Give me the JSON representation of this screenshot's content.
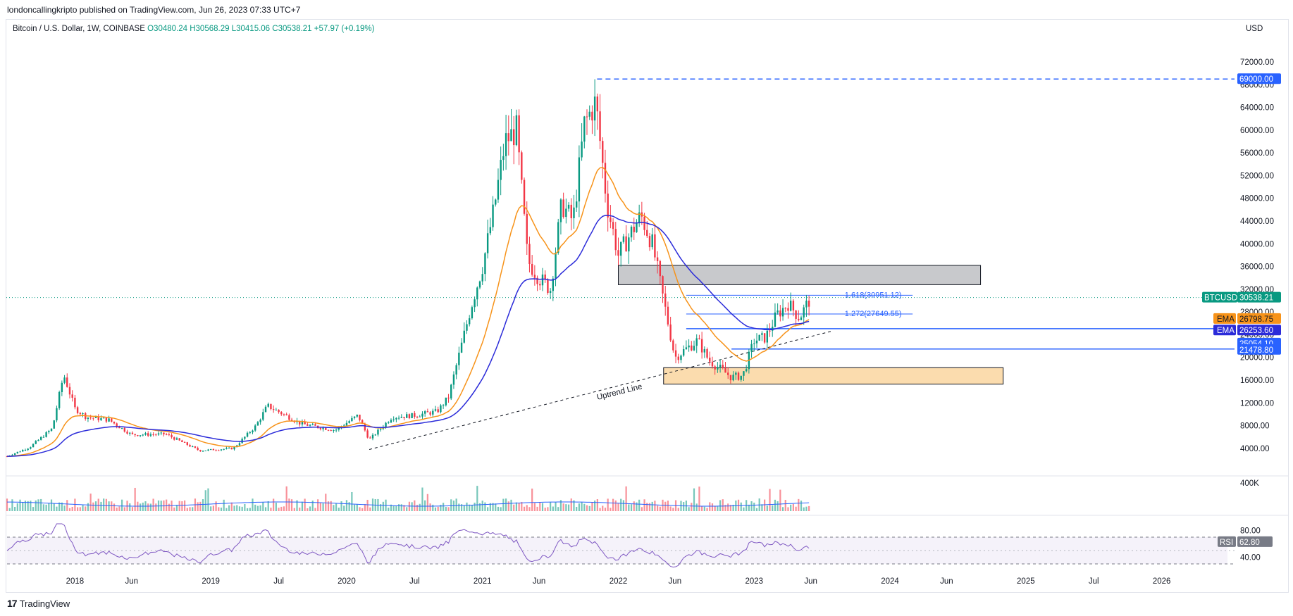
{
  "publisher_line": "londoncallingkripto published on TradingView.com, Jun 26, 2023 07:33 UTC+7",
  "symbol": {
    "name": "Bitcoin / U.S. Dollar, 1W, COINBASE",
    "open": "O30480.24",
    "high": "H30568.29",
    "low": "L30415.06",
    "close": "C30538.21",
    "change": "+57.97 (+0.19%)"
  },
  "currency": "USD",
  "footer": {
    "brand": "TradingView",
    "logo": "17"
  },
  "colors": {
    "up": "#089981",
    "down": "#f23645",
    "ema_fast": "#f7931a",
    "ema_slow": "#2b2bd9",
    "blue": "#2962ff",
    "rsi": "#7e57c2",
    "zone_gray": "#c8c9cc",
    "zone_orange": "#fbdcae"
  },
  "chart_data": {
    "type": "candlestick",
    "timeframe": "1W",
    "price_axis": {
      "ticks": [
        "72000.00",
        "68000.00",
        "64000.00",
        "60000.00",
        "56000.00",
        "52000.00",
        "48000.00",
        "44000.00",
        "40000.00",
        "36000.00",
        "32000.00",
        "28000.00",
        "24000.00",
        "20000.00",
        "16000.00",
        "12000.00",
        "8000.00",
        "4000.00"
      ],
      "ylim": [
        2000,
        72000
      ]
    },
    "time_axis": {
      "labels": [
        "2018",
        "Jun",
        "2019",
        "Jul",
        "2020",
        "Jul",
        "2021",
        "Jun",
        "2022",
        "Jun",
        "2023",
        "Jun",
        "2024",
        "Jun",
        "2025",
        "Jul",
        "2026"
      ],
      "range": [
        "2017-07",
        "2026-06"
      ]
    },
    "price_series_knots": [
      {
        "t": "2017-07",
        "p": 2600
      },
      {
        "t": "2017-09",
        "p": 4200
      },
      {
        "t": "2017-11",
        "p": 7500
      },
      {
        "t": "2017-12",
        "p": 17000
      },
      {
        "t": "2018-01",
        "p": 11000
      },
      {
        "t": "2018-02",
        "p": 9500
      },
      {
        "t": "2018-04",
        "p": 9000
      },
      {
        "t": "2018-06",
        "p": 6400
      },
      {
        "t": "2018-09",
        "p": 6500
      },
      {
        "t": "2018-12",
        "p": 3600
      },
      {
        "t": "2019-03",
        "p": 4000
      },
      {
        "t": "2019-05",
        "p": 8000
      },
      {
        "t": "2019-06",
        "p": 11500
      },
      {
        "t": "2019-09",
        "p": 8300
      },
      {
        "t": "2019-12",
        "p": 7200
      },
      {
        "t": "2020-02",
        "p": 9800
      },
      {
        "t": "2020-03",
        "p": 5500
      },
      {
        "t": "2020-05",
        "p": 9500
      },
      {
        "t": "2020-07",
        "p": 9800
      },
      {
        "t": "2020-09",
        "p": 10500
      },
      {
        "t": "2020-10",
        "p": 13000
      },
      {
        "t": "2020-12",
        "p": 29000
      },
      {
        "t": "2021-01",
        "p": 36000
      },
      {
        "t": "2021-02",
        "p": 46000
      },
      {
        "t": "2021-03",
        "p": 58000
      },
      {
        "t": "2021-04",
        "p": 60000
      },
      {
        "t": "2021-05",
        "p": 37000
      },
      {
        "t": "2021-06",
        "p": 34000
      },
      {
        "t": "2021-07",
        "p": 32000
      },
      {
        "t": "2021-08",
        "p": 47000
      },
      {
        "t": "2021-09",
        "p": 44000
      },
      {
        "t": "2021-10",
        "p": 61000
      },
      {
        "t": "2021-11",
        "p": 65000
      },
      {
        "t": "2021-12",
        "p": 47000
      },
      {
        "t": "2022-01",
        "p": 38000
      },
      {
        "t": "2022-03",
        "p": 45000
      },
      {
        "t": "2022-04",
        "p": 40000
      },
      {
        "t": "2022-05",
        "p": 30000
      },
      {
        "t": "2022-06",
        "p": 20000
      },
      {
        "t": "2022-08",
        "p": 23000
      },
      {
        "t": "2022-09",
        "p": 19500
      },
      {
        "t": "2022-11",
        "p": 16500
      },
      {
        "t": "2022-12",
        "p": 16800
      },
      {
        "t": "2023-01",
        "p": 23000
      },
      {
        "t": "2023-02",
        "p": 23500
      },
      {
        "t": "2023-03",
        "p": 27500
      },
      {
        "t": "2023-04",
        "p": 29500
      },
      {
        "t": "2023-05",
        "p": 27000
      },
      {
        "t": "2023-06",
        "p": 30538
      }
    ],
    "indicators": {
      "ema_fast_label": "EMA",
      "ema_fast_value": "26798.75",
      "ema_slow_label": "EMA",
      "ema_slow_value": "26253.60"
    },
    "price_tags": {
      "ath": "69000.00",
      "last_symbol": "BTCUSD",
      "last": "30538.21",
      "support_1": "25054.10",
      "support_2": "21478.80"
    },
    "fibonacci": [
      {
        "ratio": "1.618",
        "value": "1.618(30951.12)",
        "price": 30951.12
      },
      {
        "ratio": "1.272",
        "value": "1.272(27649.55)",
        "price": 27649.55
      }
    ],
    "horizontal_levels": [
      69000,
      25054.1,
      21478.8
    ],
    "zones": [
      {
        "name": "resistance",
        "from": 32800,
        "to": 36200,
        "t_from": "2022-01",
        "t_to": "2024-09"
      },
      {
        "name": "demand",
        "from": 15300,
        "to": 18200,
        "t_from": "2022-05",
        "t_to": "2024-11"
      }
    ],
    "annotations": {
      "trendline_label": "Uptrend Line"
    },
    "volume": {
      "axis_label": "400K"
    },
    "rsi": {
      "label": "RSI",
      "value": "62.80",
      "ticks": [
        "80.00",
        "40.00"
      ],
      "upper": 70,
      "lower": 30
    }
  }
}
